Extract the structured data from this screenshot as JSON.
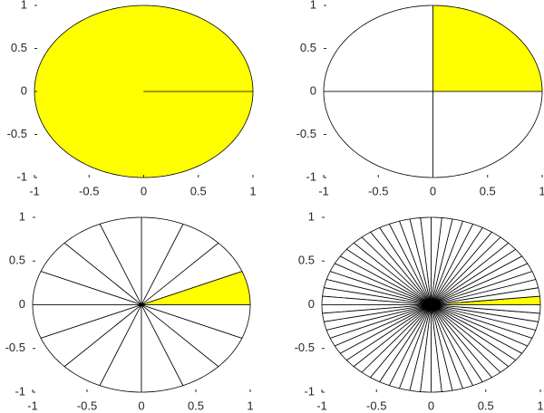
{
  "chart_data": [
    {
      "type": "pie",
      "values": [
        1
      ],
      "color": "#ffffff",
      "highlight": 0,
      "highlight_color": "#ffff00",
      "xlim": [
        -1,
        1
      ],
      "ylim": [
        -1,
        1
      ],
      "xticks": [
        -1,
        -0.5,
        0,
        0.5,
        1
      ],
      "yticks": [
        -1,
        -0.5,
        0,
        0.5,
        1
      ]
    },
    {
      "type": "pie",
      "values": [
        1,
        1,
        1,
        1
      ],
      "color": "#ffffff",
      "highlight": 0,
      "highlight_color": "#ffff00",
      "xlim": [
        -1,
        1
      ],
      "ylim": [
        -1,
        1
      ],
      "xticks": [
        -1,
        -0.5,
        0,
        0.5,
        1
      ],
      "yticks": [
        -1,
        -0.5,
        0,
        0.5,
        1
      ]
    },
    {
      "type": "pie",
      "values": [
        1,
        1,
        1,
        1,
        1,
        1,
        1,
        1,
        1,
        1,
        1,
        1,
        1,
        1,
        1,
        1
      ],
      "color": "#ffffff",
      "highlight": 0,
      "highlight_color": "#ffff00",
      "xlim": [
        -1,
        1
      ],
      "ylim": [
        -1,
        1
      ],
      "xticks": [
        -1,
        -0.5,
        0,
        0.5,
        1
      ],
      "yticks": [
        -1,
        -0.5,
        0,
        0.5,
        1
      ]
    },
    {
      "type": "pie",
      "values": [
        1,
        1,
        1,
        1,
        1,
        1,
        1,
        1,
        1,
        1,
        1,
        1,
        1,
        1,
        1,
        1,
        1,
        1,
        1,
        1,
        1,
        1,
        1,
        1,
        1,
        1,
        1,
        1,
        1,
        1,
        1,
        1,
        1,
        1,
        1,
        1,
        1,
        1,
        1,
        1,
        1,
        1,
        1,
        1,
        1,
        1,
        1,
        1,
        1,
        1,
        1,
        1,
        1,
        1,
        1,
        1,
        1,
        1,
        1,
        1,
        1,
        1,
        1,
        1
      ],
      "color": "#ffffff",
      "highlight": 0,
      "highlight_color": "#ffff00",
      "xlim": [
        -1,
        1
      ],
      "ylim": [
        -1,
        1
      ],
      "xticks": [
        -1,
        -0.5,
        0,
        0.5,
        1
      ],
      "yticks": [
        -1,
        -0.5,
        0,
        0.5,
        1
      ]
    }
  ]
}
